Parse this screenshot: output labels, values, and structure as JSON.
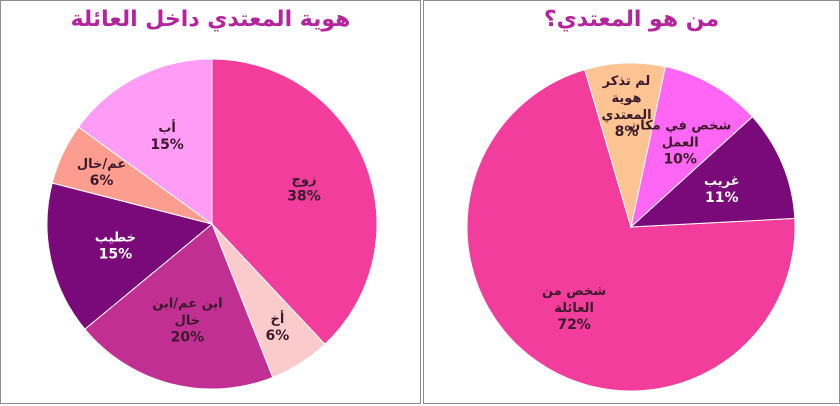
{
  "chart_data": [
    {
      "type": "pie",
      "title": "هوية المعتدي داخل العائلة",
      "slices": [
        {
          "label": "زوج",
          "value": 38,
          "value_label": "38%",
          "color": "#f23d9c",
          "label_color": "#3a1a2c"
        },
        {
          "label": "أخ",
          "value": 6,
          "value_label": "6%",
          "color": "#fbcbcb",
          "label_color": "#3a1a2c"
        },
        {
          "label": "ابن عم/ابن خال",
          "value": 20,
          "value_label": "20%",
          "color": "#c22f93",
          "label_color": "#3a1a2c"
        },
        {
          "label": "خطيب",
          "value": 15,
          "value_label": "15%",
          "color": "#7a0a79",
          "label_color": "#ffffff"
        },
        {
          "label": "عم/خال",
          "value": 6,
          "value_label": "6%",
          "color": "#fc9d90",
          "label_color": "#3a1a2c"
        },
        {
          "label": "أب",
          "value": 15,
          "value_label": "15%",
          "color": "#ff9cf6",
          "label_color": "#3a1a2c"
        }
      ]
    },
    {
      "type": "pie",
      "title": "من هو المعتدي؟",
      "slices": [
        {
          "label": "شخص من العائلة",
          "value": 72,
          "value_label": "72%",
          "color": "#f23d9c",
          "label_color": "#3a1a2c"
        },
        {
          "label": "لم تذكر هوية المعتدي",
          "value": 8,
          "value_label": "8%",
          "color": "#fcc492",
          "label_color": "#3a1a2c"
        },
        {
          "label": "شخص في مكان العمل",
          "value": 10,
          "value_label": "10%",
          "color": "#ff66f4",
          "label_color": "#3a1a2c"
        },
        {
          "label": "غريب",
          "value": 11,
          "value_label": "11%",
          "color": "#7a0a79",
          "label_color": "#ffffff"
        }
      ]
    }
  ]
}
